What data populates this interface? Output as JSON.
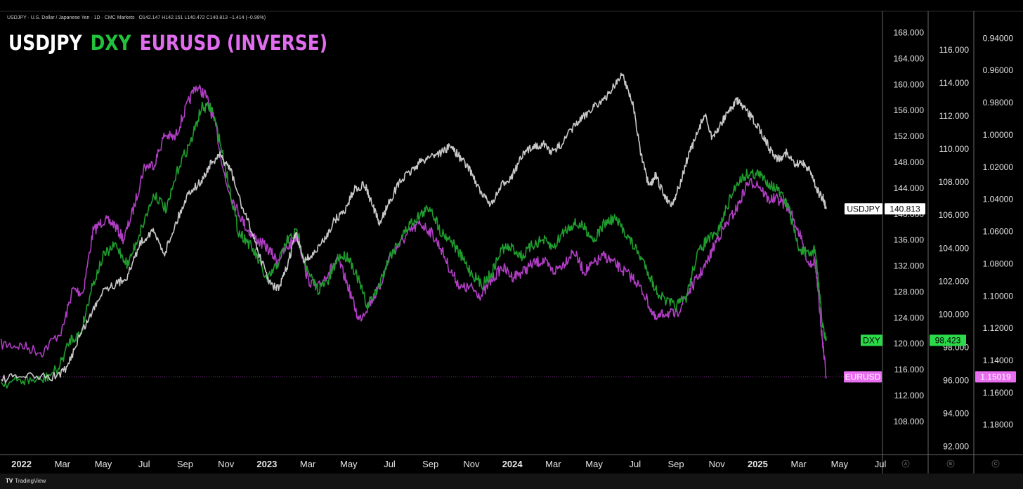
{
  "header": {
    "symbol_info": "USDJPY · U.S. Dollar / Japanese Yen · 1D · CMC Markets",
    "ohlc": "O142.147  H142.151  L140.472  C140.813  −1.414 (−0.99%)"
  },
  "legend": {
    "usdjpy": "USDJPY",
    "dxy": "DXY",
    "eurusd": "EURUSD (INVERSE)"
  },
  "colors": {
    "usdjpy": "#c8c8c8",
    "dxy": "#1f9d2e",
    "eurusd": "#b03ec4",
    "eurusd_tag": "#e86ef0",
    "dxy_tag": "#2bd94a"
  },
  "footer": {
    "brand": "TradingView",
    "logo": "TV"
  },
  "scale_letters": [
    "A",
    "B",
    "C"
  ],
  "chart_data": {
    "type": "line",
    "x_ticks": [
      {
        "label": "2022",
        "bold": true
      },
      {
        "label": "Mar"
      },
      {
        "label": "May"
      },
      {
        "label": "Jul"
      },
      {
        "label": "Sep"
      },
      {
        "label": "Nov"
      },
      {
        "label": "2023",
        "bold": true
      },
      {
        "label": "Mar"
      },
      {
        "label": "May"
      },
      {
        "label": "Jul"
      },
      {
        "label": "Sep"
      },
      {
        "label": "Nov"
      },
      {
        "label": "2024",
        "bold": true
      },
      {
        "label": "Mar"
      },
      {
        "label": "May"
      },
      {
        "label": "Jul"
      },
      {
        "label": "Sep"
      },
      {
        "label": "Nov"
      },
      {
        "label": "2025",
        "bold": true
      },
      {
        "label": "Mar"
      },
      {
        "label": "May"
      },
      {
        "label": "Jul"
      }
    ],
    "x_months": [
      0,
      2,
      4,
      6,
      8,
      10,
      12,
      14,
      16,
      18,
      20,
      22,
      24,
      26,
      28,
      30,
      32,
      34,
      36,
      38,
      40,
      42
    ],
    "x_range_months": [
      -1.05,
      42.1
    ],
    "axes": {
      "usdjpy": {
        "ticks": [
          "168.000",
          "164.000",
          "160.000",
          "156.000",
          "152.000",
          "148.000",
          "144.000",
          "140.000",
          "136.000",
          "132.000",
          "128.000",
          "124.000",
          "120.000",
          "116.000",
          "112.000",
          "108.000"
        ],
        "range": [
          103.0,
          171.2
        ]
      },
      "dxy": {
        "ticks": [
          "116.000",
          "114.000",
          "112.000",
          "110.000",
          "108.000",
          "106.000",
          "104.000",
          "102.000",
          "100.000",
          "98.000",
          "96.000",
          "94.000",
          "92.000"
        ],
        "range": [
          91.55,
          118.3
        ]
      },
      "eurusd": {
        "ticks": [
          "0.94000",
          "0.96000",
          "0.98000",
          "1.00000",
          "1.02000",
          "1.04000",
          "1.06000",
          "1.08000",
          "1.10000",
          "1.12000",
          "1.14000",
          "1.16000",
          "1.18000"
        ],
        "range": [
          1.198,
          0.9237
        ],
        "inverted": true
      }
    },
    "series": [
      {
        "name": "USDJPY",
        "last": "140.813",
        "points": [
          [
            -1,
            114.5
          ],
          [
            0,
            115.0
          ],
          [
            1.5,
            114.8
          ],
          [
            2.2,
            116.0
          ],
          [
            2.8,
            121.0
          ],
          [
            3.4,
            124.5
          ],
          [
            4.0,
            128.5
          ],
          [
            4.7,
            129.3
          ],
          [
            5.2,
            130.5
          ],
          [
            5.8,
            135.5
          ],
          [
            6.4,
            137.5
          ],
          [
            7.0,
            134.0
          ],
          [
            7.6,
            139.0
          ],
          [
            8.2,
            143.5
          ],
          [
            8.8,
            145.0
          ],
          [
            9.2,
            147.5
          ],
          [
            9.7,
            149.0
          ],
          [
            10.2,
            147.0
          ],
          [
            10.8,
            141.0
          ],
          [
            11.3,
            137.0
          ],
          [
            11.7,
            133.0
          ],
          [
            12.2,
            129.0
          ],
          [
            12.6,
            128.5
          ],
          [
            13.0,
            132.0
          ],
          [
            13.4,
            137.0
          ],
          [
            13.8,
            133.0
          ],
          [
            14.2,
            133.5
          ],
          [
            14.8,
            136.0
          ],
          [
            15.3,
            139.0
          ],
          [
            15.8,
            140.5
          ],
          [
            16.3,
            144.0
          ],
          [
            16.8,
            144.5
          ],
          [
            17.2,
            141.0
          ],
          [
            17.5,
            138.5
          ],
          [
            18.0,
            142.0
          ],
          [
            18.5,
            145.0
          ],
          [
            19.0,
            146.5
          ],
          [
            19.5,
            148.0
          ],
          [
            20.0,
            149.0
          ],
          [
            20.5,
            149.5
          ],
          [
            21.0,
            150.5
          ],
          [
            21.5,
            148.5
          ],
          [
            22.0,
            146.5
          ],
          [
            22.5,
            143.0
          ],
          [
            23.0,
            141.5
          ],
          [
            23.5,
            144.5
          ],
          [
            24.0,
            146.0
          ],
          [
            24.5,
            149.0
          ],
          [
            25.0,
            150.5
          ],
          [
            25.5,
            150.8
          ],
          [
            26.0,
            149.5
          ],
          [
            26.5,
            151.2
          ],
          [
            27.0,
            153.5
          ],
          [
            27.5,
            155.0
          ],
          [
            28.0,
            156.8
          ],
          [
            28.5,
            157.5
          ],
          [
            29.0,
            160.0
          ],
          [
            29.4,
            161.5
          ],
          [
            29.9,
            157.0
          ],
          [
            30.3,
            149.0
          ],
          [
            30.7,
            144.0
          ],
          [
            31.0,
            146.0
          ],
          [
            31.4,
            143.0
          ],
          [
            31.8,
            141.5
          ],
          [
            32.2,
            144.5
          ],
          [
            32.6,
            149.0
          ],
          [
            33.0,
            152.0
          ],
          [
            33.4,
            155.5
          ],
          [
            33.8,
            151.5
          ],
          [
            34.2,
            154.0
          ],
          [
            34.6,
            156.0
          ],
          [
            35.0,
            157.5
          ],
          [
            35.4,
            156.0
          ],
          [
            35.8,
            154.5
          ],
          [
            36.2,
            152.5
          ],
          [
            36.6,
            150.0
          ],
          [
            37.0,
            148.5
          ],
          [
            37.4,
            149.5
          ],
          [
            37.8,
            147.5
          ],
          [
            38.2,
            148.0
          ],
          [
            38.6,
            146.5
          ],
          [
            39.0,
            143.0
          ],
          [
            39.2,
            142.5
          ],
          [
            39.35,
            140.813
          ]
        ]
      },
      {
        "name": "DXY",
        "last": "98.423",
        "points": [
          [
            -1,
            95.8
          ],
          [
            0,
            96.0
          ],
          [
            1.0,
            96.0
          ],
          [
            1.8,
            96.7
          ],
          [
            2.4,
            98.5
          ],
          [
            2.9,
            98.8
          ],
          [
            3.4,
            101.5
          ],
          [
            4.0,
            103.5
          ],
          [
            4.6,
            104.2
          ],
          [
            5.2,
            103.0
          ],
          [
            5.8,
            105.0
          ],
          [
            6.5,
            107.3
          ],
          [
            7.1,
            106.3
          ],
          [
            7.7,
            109.0
          ],
          [
            8.3,
            110.5
          ],
          [
            8.8,
            112.5
          ],
          [
            9.3,
            112.5
          ],
          [
            9.7,
            110.5
          ],
          [
            10.2,
            107.5
          ],
          [
            10.6,
            105.0
          ],
          [
            11.0,
            104.5
          ],
          [
            11.5,
            103.5
          ],
          [
            12.0,
            102.0
          ],
          [
            12.5,
            103.0
          ],
          [
            13.0,
            104.5
          ],
          [
            13.5,
            105.0
          ],
          [
            14.0,
            102.5
          ],
          [
            14.5,
            101.5
          ],
          [
            15.0,
            102.0
          ],
          [
            15.5,
            103.5
          ],
          [
            16.0,
            103.5
          ],
          [
            16.5,
            102.0
          ],
          [
            16.9,
            100.5
          ],
          [
            17.4,
            101.5
          ],
          [
            18.0,
            103.5
          ],
          [
            18.5,
            104.5
          ],
          [
            19.0,
            105.5
          ],
          [
            19.5,
            106.0
          ],
          [
            20.0,
            106.5
          ],
          [
            20.5,
            105.0
          ],
          [
            21.0,
            104.5
          ],
          [
            21.5,
            103.5
          ],
          [
            22.0,
            102.5
          ],
          [
            22.5,
            101.8
          ],
          [
            23.0,
            102.5
          ],
          [
            23.5,
            104.0
          ],
          [
            24.0,
            104.0
          ],
          [
            24.5,
            103.5
          ],
          [
            25.0,
            104.2
          ],
          [
            25.5,
            104.5
          ],
          [
            26.0,
            104.0
          ],
          [
            26.5,
            105.0
          ],
          [
            27.0,
            105.5
          ],
          [
            27.5,
            105.3
          ],
          [
            28.0,
            104.5
          ],
          [
            28.5,
            105.5
          ],
          [
            29.0,
            105.8
          ],
          [
            29.5,
            105.0
          ],
          [
            30.0,
            104.0
          ],
          [
            30.5,
            103.0
          ],
          [
            31.0,
            101.5
          ],
          [
            31.5,
            100.8
          ],
          [
            32.0,
            100.5
          ],
          [
            32.5,
            101.0
          ],
          [
            33.0,
            103.5
          ],
          [
            33.5,
            104.5
          ],
          [
            34.0,
            104.8
          ],
          [
            34.5,
            106.5
          ],
          [
            35.0,
            108.0
          ],
          [
            35.5,
            108.5
          ],
          [
            36.0,
            108.5
          ],
          [
            36.5,
            108.0
          ],
          [
            37.0,
            107.5
          ],
          [
            37.5,
            106.5
          ],
          [
            38.0,
            104.0
          ],
          [
            38.5,
            103.5
          ],
          [
            38.8,
            104.0
          ],
          [
            39.0,
            101.5
          ],
          [
            39.15,
            99.5
          ],
          [
            39.35,
            98.423
          ]
        ]
      },
      {
        "name": "EURUSD",
        "last": "1.15019",
        "points": [
          [
            -1,
            1.13
          ],
          [
            0,
            1.131
          ],
          [
            1.0,
            1.135
          ],
          [
            2.0,
            1.121
          ],
          [
            2.5,
            1.096
          ],
          [
            3.0,
            1.098
          ],
          [
            3.5,
            1.06
          ],
          [
            4.0,
            1.053
          ],
          [
            4.5,
            1.055
          ],
          [
            5.0,
            1.065
          ],
          [
            5.5,
            1.045
          ],
          [
            6.0,
            1.02
          ],
          [
            6.5,
            1.018
          ],
          [
            7.0,
            1.0
          ],
          [
            7.5,
            1.002
          ],
          [
            8.0,
            0.985
          ],
          [
            8.5,
            0.97
          ],
          [
            9.0,
            0.975
          ],
          [
            9.5,
            0.995
          ],
          [
            10.0,
            1.03
          ],
          [
            10.5,
            1.045
          ],
          [
            11.0,
            1.058
          ],
          [
            11.5,
            1.065
          ],
          [
            12.0,
            1.07
          ],
          [
            12.5,
            1.078
          ],
          [
            13.0,
            1.07
          ],
          [
            13.5,
            1.062
          ],
          [
            14.0,
            1.09
          ],
          [
            14.5,
            1.095
          ],
          [
            15.0,
            1.085
          ],
          [
            15.5,
            1.078
          ],
          [
            16.0,
            1.095
          ],
          [
            16.5,
            1.115
          ],
          [
            17.0,
            1.105
          ],
          [
            17.5,
            1.095
          ],
          [
            18.0,
            1.075
          ],
          [
            18.5,
            1.068
          ],
          [
            19.0,
            1.06
          ],
          [
            19.5,
            1.055
          ],
          [
            20.0,
            1.06
          ],
          [
            20.5,
            1.07
          ],
          [
            21.0,
            1.085
          ],
          [
            21.5,
            1.095
          ],
          [
            22.0,
            1.095
          ],
          [
            22.5,
            1.1
          ],
          [
            23.0,
            1.09
          ],
          [
            23.5,
            1.082
          ],
          [
            24.0,
            1.088
          ],
          [
            24.5,
            1.085
          ],
          [
            25.0,
            1.08
          ],
          [
            25.5,
            1.078
          ],
          [
            26.0,
            1.085
          ],
          [
            26.5,
            1.08
          ],
          [
            27.0,
            1.072
          ],
          [
            27.5,
            1.085
          ],
          [
            28.0,
            1.08
          ],
          [
            28.5,
            1.075
          ],
          [
            29.0,
            1.08
          ],
          [
            29.5,
            1.085
          ],
          [
            30.0,
            1.09
          ],
          [
            30.5,
            1.1
          ],
          [
            31.0,
            1.115
          ],
          [
            31.5,
            1.11
          ],
          [
            32.0,
            1.112
          ],
          [
            32.5,
            1.1
          ],
          [
            33.0,
            1.09
          ],
          [
            33.5,
            1.08
          ],
          [
            34.0,
            1.065
          ],
          [
            34.5,
            1.055
          ],
          [
            35.0,
            1.045
          ],
          [
            35.5,
            1.03
          ],
          [
            36.0,
            1.03
          ],
          [
            36.5,
            1.04
          ],
          [
            37.0,
            1.04
          ],
          [
            37.5,
            1.045
          ],
          [
            38.0,
            1.06
          ],
          [
            38.5,
            1.08
          ],
          [
            38.8,
            1.078
          ],
          [
            39.0,
            1.105
          ],
          [
            39.15,
            1.125
          ],
          [
            39.35,
            1.15019
          ]
        ]
      }
    ]
  }
}
